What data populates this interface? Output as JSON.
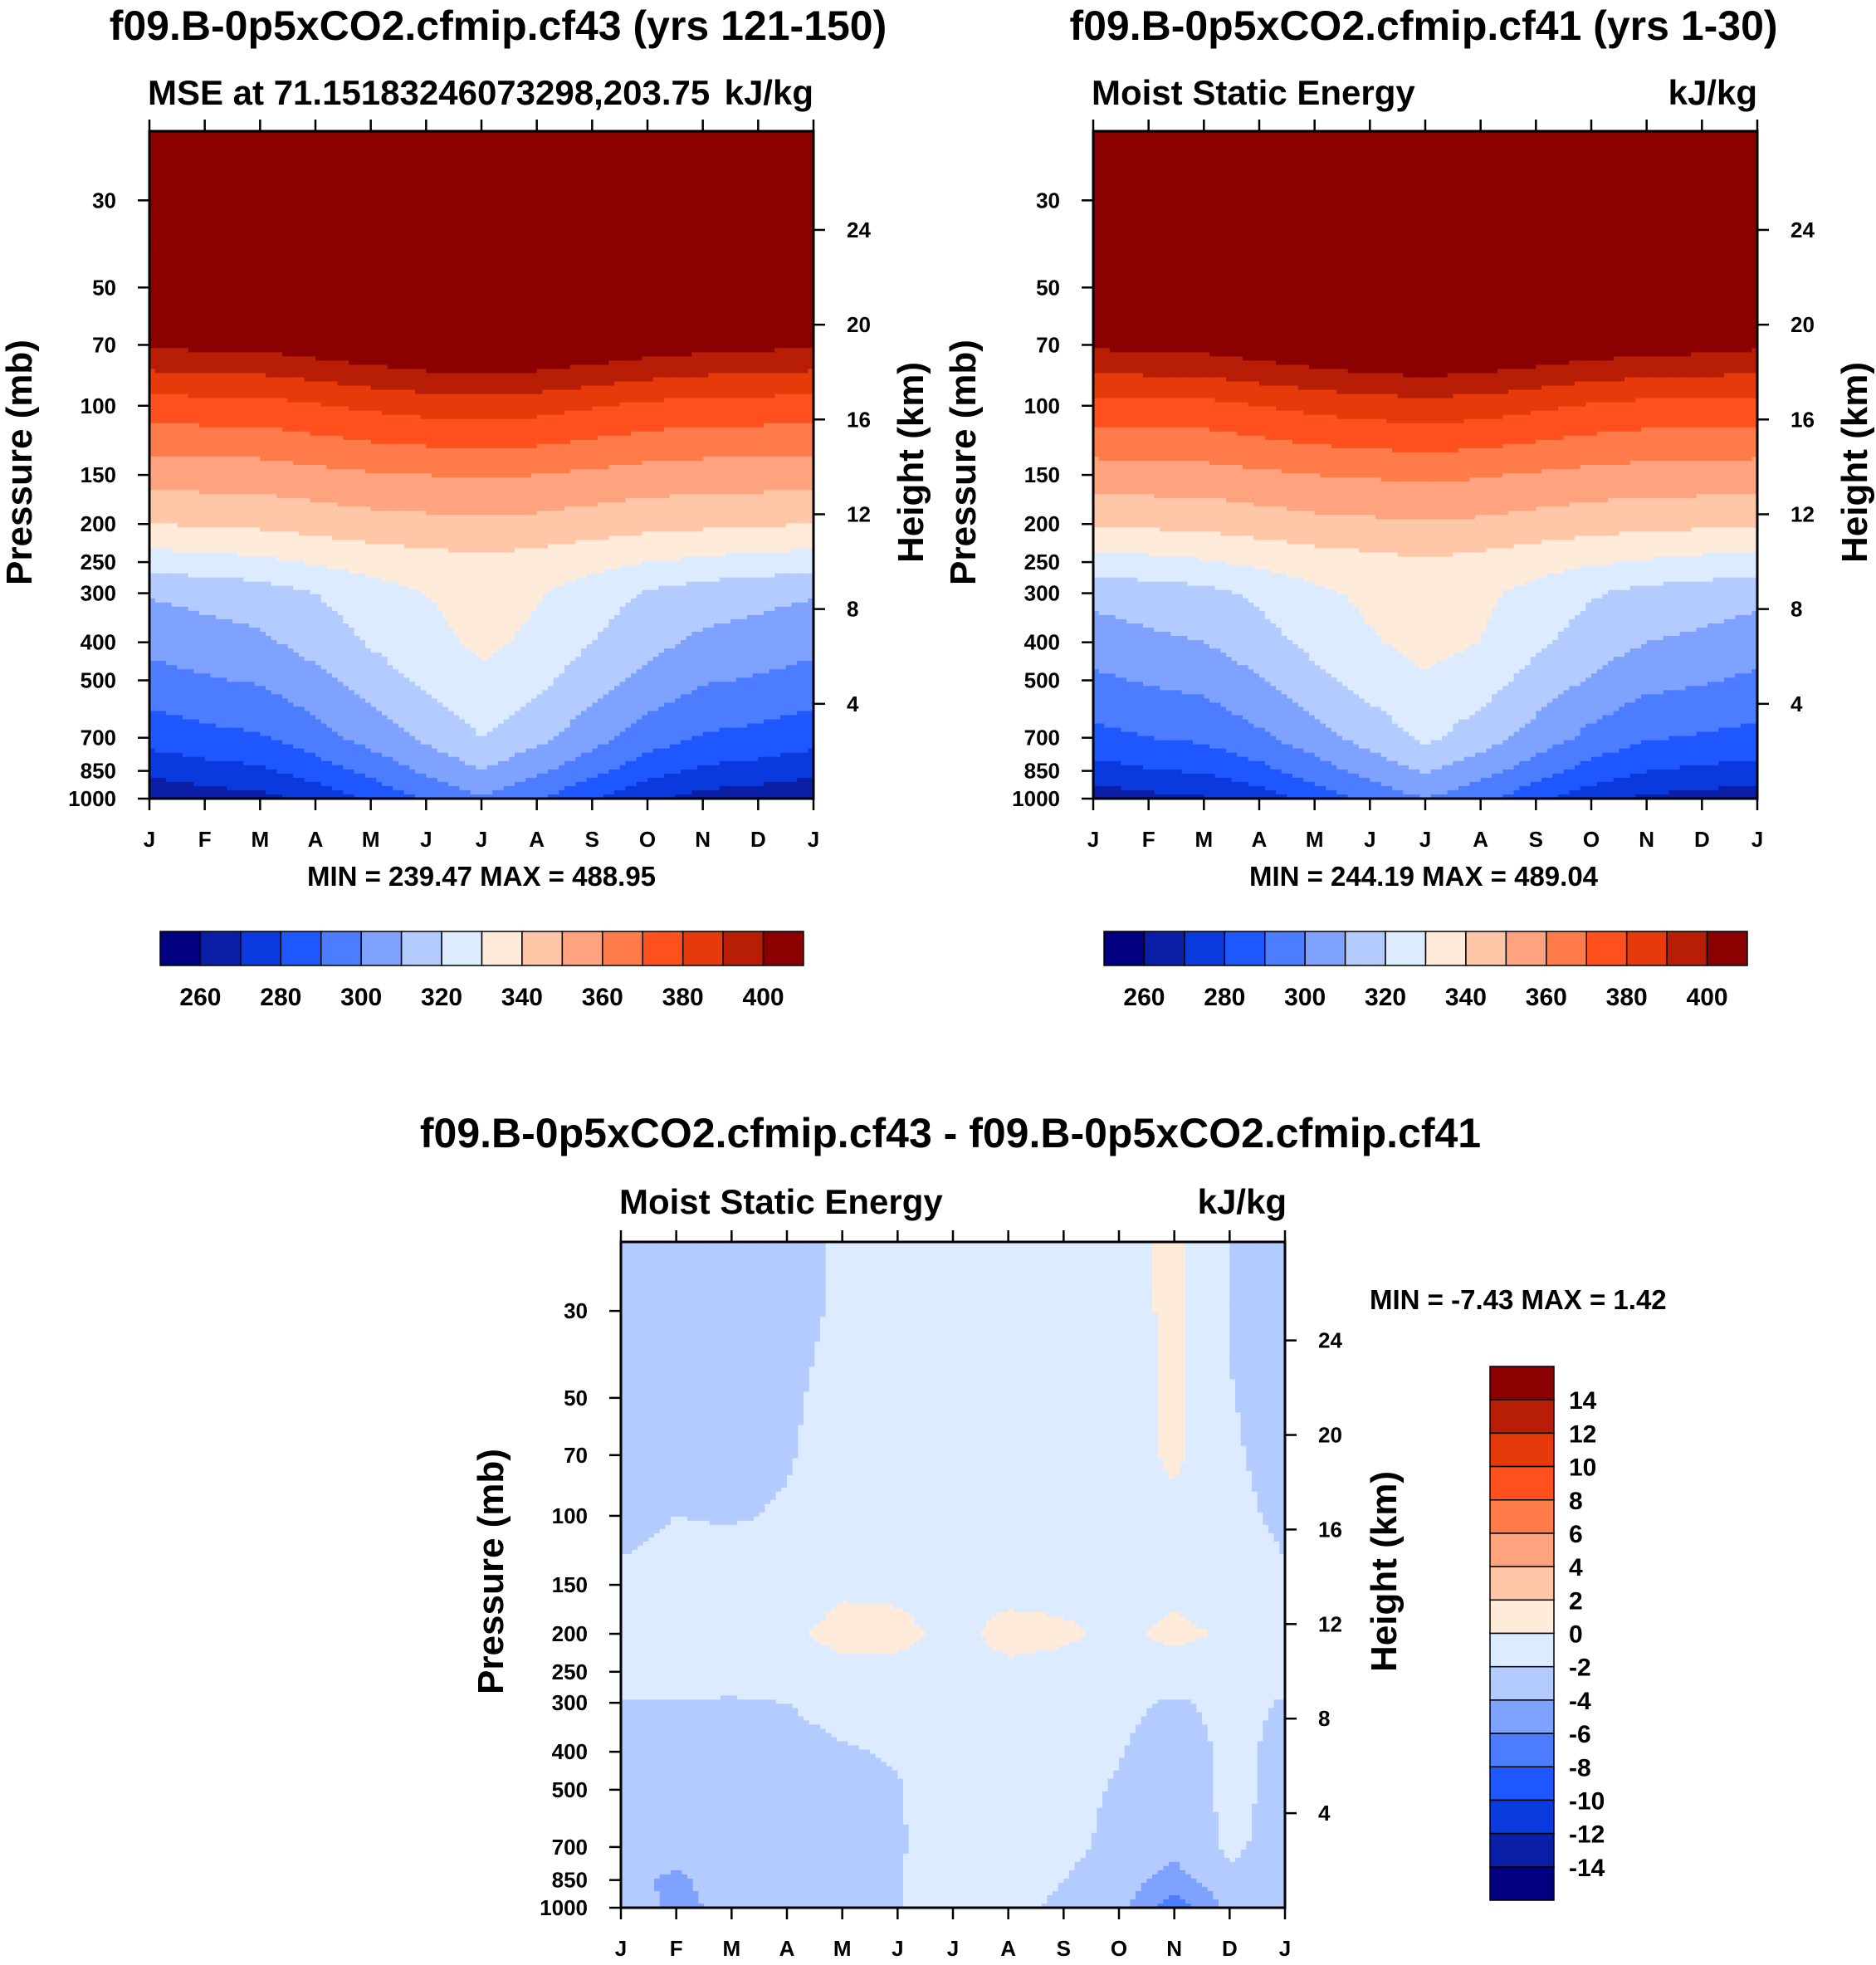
{
  "chart_data": [
    {
      "type": "contour",
      "title": "f09.B-0p5xCO2.cfmip.cf43 (yrs 121-150)",
      "left_subtitle": "MSE at 71.15183246073298,203.75",
      "right_subtitle": "kJ/kg",
      "ylabel": "Pressure (mb)",
      "ylabel_right": "Height (km)",
      "x_ticks": [
        "J",
        "F",
        "M",
        "A",
        "M",
        "J",
        "J",
        "A",
        "S",
        "O",
        "N",
        "D",
        "J"
      ],
      "y_ticks": [
        "30",
        "50",
        "70",
        "100",
        "150",
        "200",
        "250",
        "300",
        "400",
        "500",
        "700",
        "850",
        "1000"
      ],
      "y_ticks_right": [
        "24",
        "20",
        "16",
        "12",
        "8",
        "4"
      ],
      "stats": "MIN = 239.47 MAX = 488.95",
      "colorbar_labels": [
        "260",
        "280",
        "300",
        "320",
        "340",
        "360",
        "380",
        "400"
      ],
      "colors": [
        "#000080",
        "#0a1ea8",
        "#0a3ade",
        "#1f57ff",
        "#4c7cff",
        "#7fa2ff",
        "#b4cbff",
        "#dcebff",
        "#ffebd9",
        "#ffc7a8",
        "#ffa27e",
        "#ff7c4a",
        "#ff501e",
        "#e63a0a",
        "#b81e06",
        "#8b0000"
      ],
      "levels": [
        250,
        260,
        270,
        280,
        290,
        300,
        310,
        320,
        330,
        340,
        350,
        360,
        370,
        380,
        390,
        400
      ],
      "field": {
        "pressure": [
          1000,
          850,
          700,
          500,
          400,
          300,
          250,
          200,
          150,
          100,
          70,
          50,
          30
        ],
        "months": [
          "J",
          "F",
          "M",
          "A",
          "M",
          "J",
          "J",
          "A",
          "S",
          "O",
          "N",
          "D",
          "J"
        ],
        "values": [
          [
            251,
            255,
            257,
            263,
            272,
            281,
            289,
            281,
            271,
            262,
            256,
            254,
            251
          ],
          [
            263,
            266,
            268,
            275,
            283,
            292,
            300,
            292,
            283,
            274,
            268,
            266,
            263
          ],
          [
            274,
            277,
            279,
            286,
            294,
            302,
            310,
            303,
            294,
            285,
            279,
            277,
            274
          ],
          [
            286,
            289,
            291,
            297,
            305,
            312,
            318,
            313,
            304,
            297,
            291,
            289,
            286
          ],
          [
            293,
            296,
            298,
            304,
            311,
            317,
            322,
            318,
            310,
            303,
            298,
            296,
            293
          ],
          [
            301,
            303,
            305,
            310,
            316,
            320,
            324,
            321,
            315,
            309,
            305,
            303,
            301
          ],
          [
            315,
            316,
            318,
            321,
            324,
            326,
            328,
            326,
            323,
            320,
            318,
            316,
            315
          ],
          [
            330,
            331,
            332,
            334,
            336,
            337,
            338,
            337,
            335,
            333,
            332,
            331,
            330
          ],
          [
            344,
            345,
            345,
            347,
            349,
            350,
            351,
            350,
            348,
            346,
            345,
            345,
            344
          ],
          [
            365,
            366,
            366,
            369,
            372,
            374,
            375,
            374,
            371,
            368,
            366,
            366,
            365
          ],
          [
            391,
            393,
            393,
            396,
            399,
            402,
            404,
            402,
            399,
            396,
            394,
            393,
            391
          ],
          [
            440,
            440,
            440,
            440,
            440,
            440,
            440,
            440,
            440,
            440,
            440,
            440,
            440
          ],
          [
            470,
            470,
            470,
            470,
            470,
            470,
            470,
            470,
            470,
            470,
            470,
            470,
            470
          ]
        ]
      }
    },
    {
      "type": "contour",
      "title": "f09.B-0p5xCO2.cfmip.cf41 (yrs 1-30)",
      "left_subtitle": "Moist Static Energy",
      "right_subtitle": "kJ/kg",
      "ylabel": "Pressure (mb)",
      "ylabel_right": "Height (km)",
      "x_ticks": [
        "J",
        "F",
        "M",
        "A",
        "M",
        "J",
        "J",
        "A",
        "S",
        "O",
        "N",
        "D",
        "J"
      ],
      "y_ticks": [
        "30",
        "50",
        "70",
        "100",
        "150",
        "200",
        "250",
        "300",
        "400",
        "500",
        "700",
        "850",
        "1000"
      ],
      "y_ticks_right": [
        "24",
        "20",
        "16",
        "12",
        "8",
        "4"
      ],
      "stats": "MIN = 244.19 MAX = 489.04",
      "colorbar_labels": [
        "260",
        "280",
        "300",
        "320",
        "340",
        "360",
        "380",
        "400"
      ],
      "colors": [
        "#000080",
        "#0a1ea8",
        "#0a3ade",
        "#1f57ff",
        "#4c7cff",
        "#7fa2ff",
        "#b4cbff",
        "#dcebff",
        "#ffebd9",
        "#ffc7a8",
        "#ffa27e",
        "#ff7c4a",
        "#ff501e",
        "#e63a0a",
        "#b81e06",
        "#8b0000"
      ],
      "levels": [
        250,
        260,
        270,
        280,
        290,
        300,
        310,
        320,
        330,
        340,
        350,
        360,
        370,
        380,
        390,
        400
      ],
      "field": {
        "pressure": [
          1000,
          850,
          700,
          500,
          400,
          300,
          250,
          200,
          150,
          100,
          70,
          50,
          30
        ],
        "months": [
          "J",
          "F",
          "M",
          "A",
          "M",
          "J",
          "J",
          "A",
          "S",
          "O",
          "N",
          "D",
          "J"
        ],
        "values": [
          [
            254,
            257,
            259,
            265,
            274,
            283,
            290,
            283,
            273,
            264,
            258,
            256,
            254
          ],
          [
            266,
            269,
            271,
            277,
            285,
            294,
            301,
            294,
            285,
            276,
            270,
            268,
            266
          ],
          [
            277,
            280,
            282,
            288,
            296,
            304,
            312,
            305,
            296,
            287,
            281,
            279,
            277
          ],
          [
            288,
            291,
            293,
            299,
            307,
            314,
            319,
            315,
            306,
            299,
            293,
            291,
            288
          ],
          [
            295,
            298,
            300,
            306,
            313,
            319,
            323,
            320,
            312,
            305,
            300,
            298,
            295
          ],
          [
            303,
            305,
            307,
            312,
            318,
            322,
            325,
            322,
            317,
            311,
            307,
            305,
            303
          ],
          [
            316,
            317,
            319,
            322,
            325,
            327,
            329,
            327,
            324,
            321,
            319,
            317,
            316
          ],
          [
            331,
            332,
            333,
            335,
            337,
            338,
            339,
            338,
            336,
            334,
            333,
            332,
            331
          ],
          [
            345,
            346,
            346,
            348,
            350,
            351,
            352,
            351,
            349,
            347,
            346,
            346,
            345
          ],
          [
            366,
            367,
            367,
            370,
            373,
            375,
            376,
            375,
            372,
            369,
            367,
            367,
            366
          ],
          [
            392,
            393,
            394,
            397,
            400,
            403,
            405,
            403,
            400,
            397,
            395,
            394,
            392
          ],
          [
            440,
            440,
            440,
            440,
            440,
            440,
            440,
            440,
            440,
            440,
            440,
            440,
            440
          ],
          [
            470,
            470,
            470,
            470,
            470,
            470,
            470,
            470,
            470,
            470,
            470,
            470,
            470
          ]
        ]
      }
    },
    {
      "type": "contour",
      "title": "f09.B-0p5xCO2.cfmip.cf43 - f09.B-0p5xCO2.cfmip.cf41",
      "left_subtitle": "Moist Static Energy",
      "right_subtitle": "kJ/kg",
      "ylabel": "Pressure (mb)",
      "ylabel_right": "Height (km)",
      "x_ticks": [
        "J",
        "F",
        "M",
        "A",
        "M",
        "J",
        "J",
        "A",
        "S",
        "O",
        "N",
        "D",
        "J"
      ],
      "y_ticks": [
        "30",
        "50",
        "70",
        "100",
        "150",
        "200",
        "250",
        "300",
        "400",
        "500",
        "700",
        "850",
        "1000"
      ],
      "y_ticks_right": [
        "24",
        "20",
        "16",
        "12",
        "8",
        "4"
      ],
      "stats": "MIN =  -7.43 MAX =   1.42",
      "colorbar_labels": [
        "14",
        "12",
        "10",
        "8",
        "6",
        "4",
        "2",
        "0",
        "-2",
        "-4",
        "-6",
        "-8",
        "-10",
        "-12",
        "-14"
      ],
      "colors": [
        "#000080",
        "#0a1ea8",
        "#0a3ade",
        "#1f57ff",
        "#4c7cff",
        "#7fa2ff",
        "#b4cbff",
        "#dcebff",
        "#ffebd9",
        "#ffc7a8",
        "#ffa27e",
        "#ff7c4a",
        "#ff501e",
        "#e63a0a",
        "#b81e06",
        "#8b0000"
      ],
      "levels": [
        -14,
        -12,
        -10,
        -8,
        -6,
        -4,
        -2,
        0,
        2,
        4,
        6,
        8,
        10,
        12,
        14
      ],
      "field": {
        "pressure": [
          1000,
          850,
          700,
          500,
          400,
          300,
          250,
          200,
          150,
          100,
          70,
          50,
          30
        ],
        "months": [
          "J",
          "F",
          "M",
          "A",
          "M",
          "J",
          "J",
          "A",
          "S",
          "O",
          "N",
          "D",
          "J"
        ],
        "values": [
          [
            -3.0,
            -4.5,
            -3.5,
            -2.6,
            -2.2,
            -2.1,
            -0.6,
            -1.8,
            -2.2,
            -3.2,
            -7.4,
            -3.5,
            -3.0
          ],
          [
            -3.5,
            -4.3,
            -3.2,
            -2.5,
            -2.2,
            -2.1,
            -0.8,
            -1.4,
            -2.0,
            -3.0,
            -4.8,
            -2.4,
            -3.5
          ],
          [
            -2.8,
            -3.5,
            -3.0,
            -2.6,
            -2.3,
            -2.2,
            -1.0,
            -1.2,
            -1.5,
            -2.5,
            -3.5,
            -1.6,
            -2.8
          ],
          [
            -2.5,
            -2.9,
            -2.9,
            -2.7,
            -2.3,
            -2.1,
            -1.2,
            -1.2,
            -1.4,
            -2.2,
            -3.3,
            -1.5,
            -2.5
          ],
          [
            -2.4,
            -2.6,
            -2.6,
            -2.4,
            -2.1,
            -1.9,
            -1.3,
            -1.3,
            -1.4,
            -1.9,
            -2.9,
            -1.6,
            -2.4
          ],
          [
            -2.1,
            -2.1,
            -2.2,
            -2.0,
            -1.6,
            -1.4,
            -1.4,
            -1.4,
            -1.4,
            -1.6,
            -2.2,
            -1.6,
            -2.1
          ],
          [
            -1.4,
            -1.2,
            -1.1,
            -1.0,
            -0.5,
            -0.5,
            -1.0,
            -0.4,
            -0.6,
            -0.8,
            -1.0,
            -0.9,
            -1.4
          ],
          [
            -0.9,
            -0.8,
            -0.7,
            -0.4,
            0.6,
            0.5,
            -0.5,
            0.6,
            0.3,
            -0.4,
            0.5,
            -0.3,
            -0.9
          ],
          [
            -1.8,
            -1.6,
            -1.4,
            -1.1,
            -0.3,
            -0.4,
            -0.8,
            -0.6,
            -0.6,
            -0.7,
            -0.6,
            -1.2,
            -1.8
          ],
          [
            -2.3,
            -2.0,
            -2.1,
            -1.9,
            -1.3,
            -1.1,
            -1.1,
            -1.2,
            -1.2,
            -1.2,
            -0.5,
            -1.6,
            -2.3
          ],
          [
            -2.5,
            -2.1,
            -2.2,
            -2.1,
            -1.5,
            -1.3,
            -1.2,
            -1.4,
            -1.3,
            -1.1,
            0.4,
            -1.8,
            -2.5
          ],
          [
            -2.8,
            -2.3,
            -2.5,
            -2.2,
            -1.6,
            -1.4,
            -1.2,
            -1.5,
            -1.4,
            -1.2,
            0.6,
            -1.9,
            -2.8
          ],
          [
            -4.0,
            -2.6,
            -2.6,
            -2.4,
            -1.8,
            -1.5,
            -1.2,
            -1.8,
            -1.5,
            -1.3,
            0.7,
            -2.1,
            -4.0
          ]
        ]
      }
    }
  ]
}
